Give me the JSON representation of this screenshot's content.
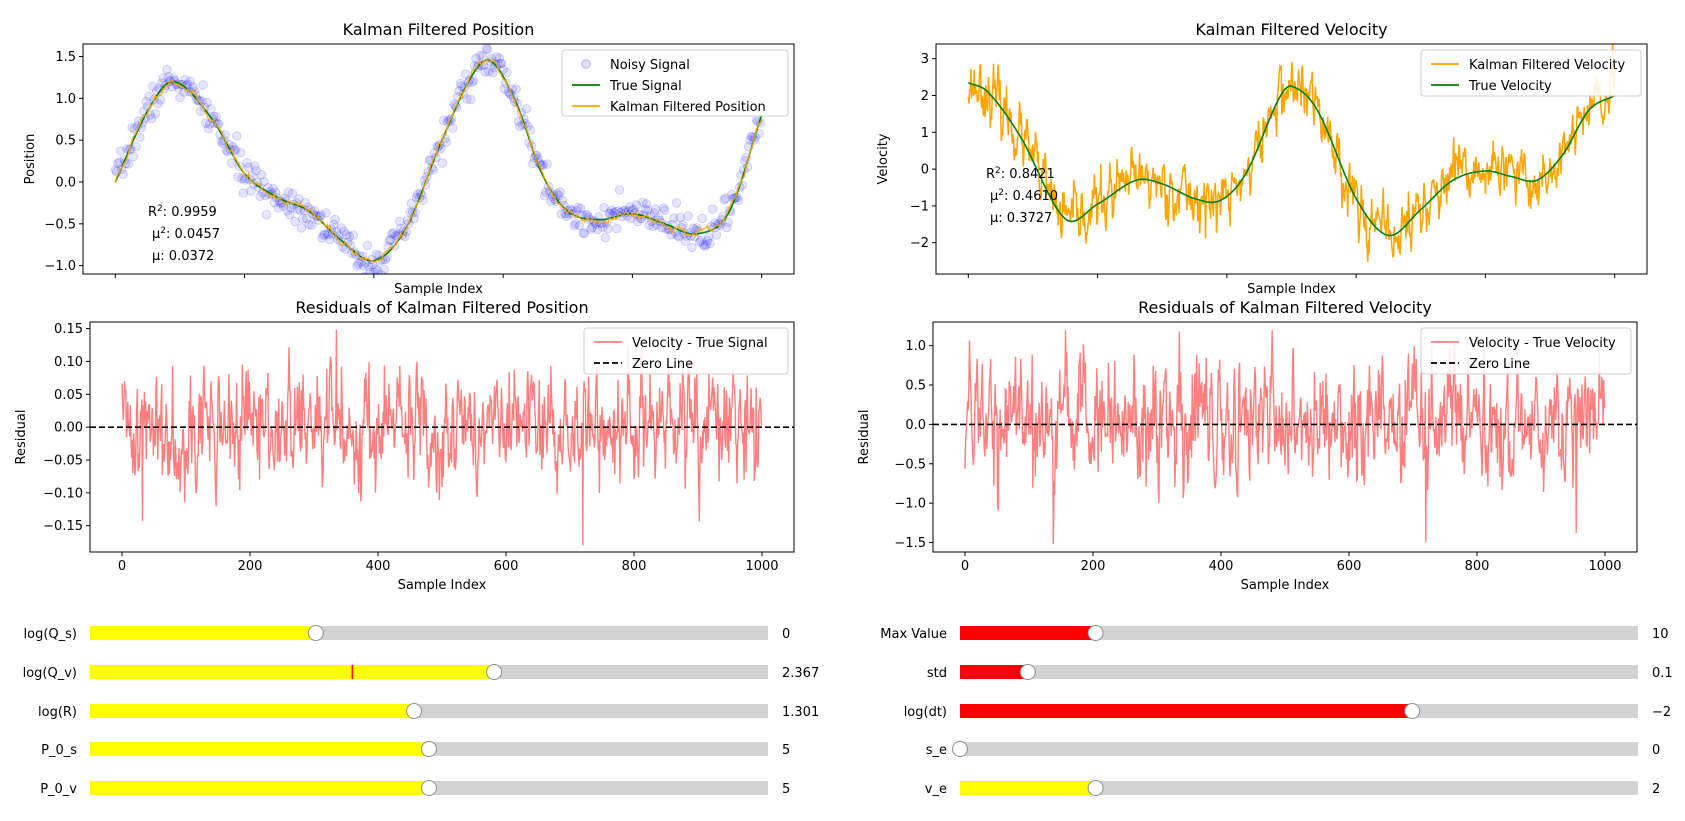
{
  "colors": {
    "noisy": "#0000ff",
    "true_signal": "#008000",
    "kalman": "#ffa500",
    "residual": "#ff7f7f",
    "zero_line": "#000000",
    "slider_yellow": "#ffff00",
    "slider_red": "#ff0000",
    "slider_track": "#d3d3d3",
    "valinit_marker": "#ff0000"
  },
  "chart_data": [
    {
      "type": "scatter+line",
      "title": "Kalman Filtered Position",
      "xlabel": "Sample Index",
      "ylabel": "Position",
      "xlim": [
        -50,
        1050
      ],
      "ylim": [
        -1.1,
        1.65
      ],
      "xticks": [
        0,
        200,
        400,
        600,
        800,
        1000
      ],
      "yticks": [
        -1.0,
        -0.5,
        0.0,
        0.5,
        1.0,
        1.5
      ],
      "ytick_labels": [
        "−1.0",
        "−0.5",
        "0.0",
        "0.5",
        "1.0",
        "1.5"
      ],
      "legend_loc": "upper right",
      "series": [
        {
          "name": "Noisy Signal",
          "kind": "scatter",
          "description": "true signal plus Gaussian noise (std about 0.1) at every sample index"
        },
        {
          "name": "True Signal",
          "kind": "line",
          "x": [
            0,
            50,
            90,
            150,
            200,
            250,
            300,
            350,
            400,
            450,
            500,
            550,
            580,
            620,
            660,
            700,
            750,
            800,
            850,
            900,
            950,
            1000
          ],
          "y": [
            0.0,
            0.85,
            1.2,
            0.75,
            0.1,
            -0.18,
            -0.35,
            -0.7,
            -0.94,
            -0.55,
            0.4,
            1.25,
            1.45,
            0.95,
            0.1,
            -0.35,
            -0.45,
            -0.38,
            -0.5,
            -0.62,
            -0.35,
            0.8
          ]
        },
        {
          "name": "Kalman Filtered Position",
          "kind": "line",
          "description": "follows the true signal with small jitter"
        }
      ],
      "annotations": [
        {
          "label": "R^2",
          "value": "0.9959"
        },
        {
          "label": "μ^2",
          "value": "0.0457"
        },
        {
          "label": "μ",
          "value": "0.0372"
        }
      ]
    },
    {
      "type": "line",
      "title": "Kalman Filtered Velocity",
      "xlabel": "Sample Index",
      "ylabel": "Velocity",
      "xlim": [
        -50,
        1050
      ],
      "ylim": [
        -2.85,
        3.4
      ],
      "xticks": [
        0,
        200,
        400,
        600,
        800,
        1000
      ],
      "yticks": [
        -2,
        -1,
        0,
        1,
        2,
        3
      ],
      "ytick_labels": [
        "−2",
        "−1",
        "0",
        "1",
        "2",
        "3"
      ],
      "legend_loc": "upper right",
      "series": [
        {
          "name": "Kalman Filtered Velocity",
          "kind": "line",
          "description": "noisy estimate around the true velocity"
        },
        {
          "name": "True Velocity",
          "kind": "line",
          "x": [
            0,
            30,
            80,
            150,
            200,
            260,
            300,
            350,
            390,
            430,
            480,
            500,
            540,
            600,
            650,
            700,
            750,
            800,
            840,
            880,
            920,
            960,
            1000
          ],
          "y": [
            2.35,
            2.1,
            0.9,
            -1.35,
            -0.95,
            -0.3,
            -0.4,
            -0.8,
            -0.85,
            -0.1,
            1.9,
            2.25,
            1.6,
            -0.8,
            -1.8,
            -1.1,
            -0.3,
            -0.05,
            -0.2,
            -0.3,
            0.4,
            1.6,
            2.0
          ]
        }
      ],
      "annotations": [
        {
          "label": "R^2",
          "value": "0.8421"
        },
        {
          "label": "μ^2",
          "value": "0.4610"
        },
        {
          "label": "μ",
          "value": "0.3727"
        }
      ]
    },
    {
      "type": "line",
      "title": "Residuals of Kalman Filtered Position",
      "xlabel": "Sample Index",
      "ylabel": "Residual",
      "xlim": [
        -50,
        1050
      ],
      "ylim": [
        -0.19,
        0.16
      ],
      "xticks": [
        0,
        200,
        400,
        600,
        800,
        1000
      ],
      "xtick_labels": [
        "0",
        "200",
        "400",
        "600",
        "800",
        "1000"
      ],
      "yticks": [
        -0.15,
        -0.1,
        -0.05,
        0.0,
        0.05,
        0.1,
        0.15
      ],
      "ytick_labels": [
        "−0.15",
        "−0.10",
        "−0.05",
        "0.00",
        "0.05",
        "0.10",
        "0.15"
      ],
      "legend_loc": "upper right",
      "series": [
        {
          "name": "Velocity - True Signal",
          "kind": "line",
          "description": "residual fluctuating between about -0.18 and 0.15"
        },
        {
          "name": "Zero Line",
          "kind": "dashed",
          "y": 0
        }
      ],
      "extremes": [
        {
          "x": 335,
          "y": 0.148
        },
        {
          "x": 720,
          "y": -0.18
        },
        {
          "x": 32,
          "y": -0.143
        }
      ]
    },
    {
      "type": "line",
      "title": "Residuals of Kalman Filtered Velocity",
      "xlabel": "Sample Index",
      "ylabel": "Residual",
      "xlim": [
        -50,
        1050
      ],
      "ylim": [
        -1.62,
        1.3
      ],
      "xticks": [
        0,
        200,
        400,
        600,
        800,
        1000
      ],
      "xtick_labels": [
        "0",
        "200",
        "400",
        "600",
        "800",
        "1000"
      ],
      "yticks": [
        -1.5,
        -1.0,
        -0.5,
        0.0,
        0.5,
        1.0
      ],
      "ytick_labels": [
        "−1.5",
        "−1.0",
        "−0.5",
        "0.0",
        "0.5",
        "1.0"
      ],
      "legend_loc": "upper right",
      "series": [
        {
          "name": "Velocity - True Velocity",
          "kind": "line",
          "description": "residual fluctuating between about -1.5 and 1.2"
        },
        {
          "name": "Zero Line",
          "kind": "dashed",
          "y": 0
        }
      ],
      "extremes": [
        {
          "x": 335,
          "y": 1.18
        },
        {
          "x": 720,
          "y": -1.5
        },
        {
          "x": 955,
          "y": -1.38
        }
      ]
    }
  ],
  "sliders": {
    "left": [
      {
        "label": "log(Q_s)",
        "value_text": "0",
        "fraction": 0.333,
        "valinit_fraction": null
      },
      {
        "label": "log(Q_v)",
        "value_text": "2.367",
        "fraction": 0.596,
        "valinit_fraction": 0.387
      },
      {
        "label": "log(R)",
        "value_text": "1.301",
        "fraction": 0.478,
        "valinit_fraction": null
      },
      {
        "label": "P_0_s",
        "value_text": "5",
        "fraction": 0.5,
        "valinit_fraction": null
      },
      {
        "label": "P_0_v",
        "value_text": "5",
        "fraction": 0.5,
        "valinit_fraction": null
      }
    ],
    "right": [
      {
        "label": "Max Value",
        "value_text": "10",
        "fraction": 0.2,
        "fill": "red"
      },
      {
        "label": "std",
        "value_text": "0.1",
        "fraction": 0.1,
        "fill": "red"
      },
      {
        "label": "log(dt)",
        "value_text": "−2",
        "fraction": 0.667,
        "fill": "red"
      },
      {
        "label": "s_e",
        "value_text": "0",
        "fraction": 0.0,
        "fill": "yellow"
      },
      {
        "label": "v_e",
        "value_text": "2",
        "fraction": 0.2,
        "fill": "yellow"
      }
    ]
  }
}
